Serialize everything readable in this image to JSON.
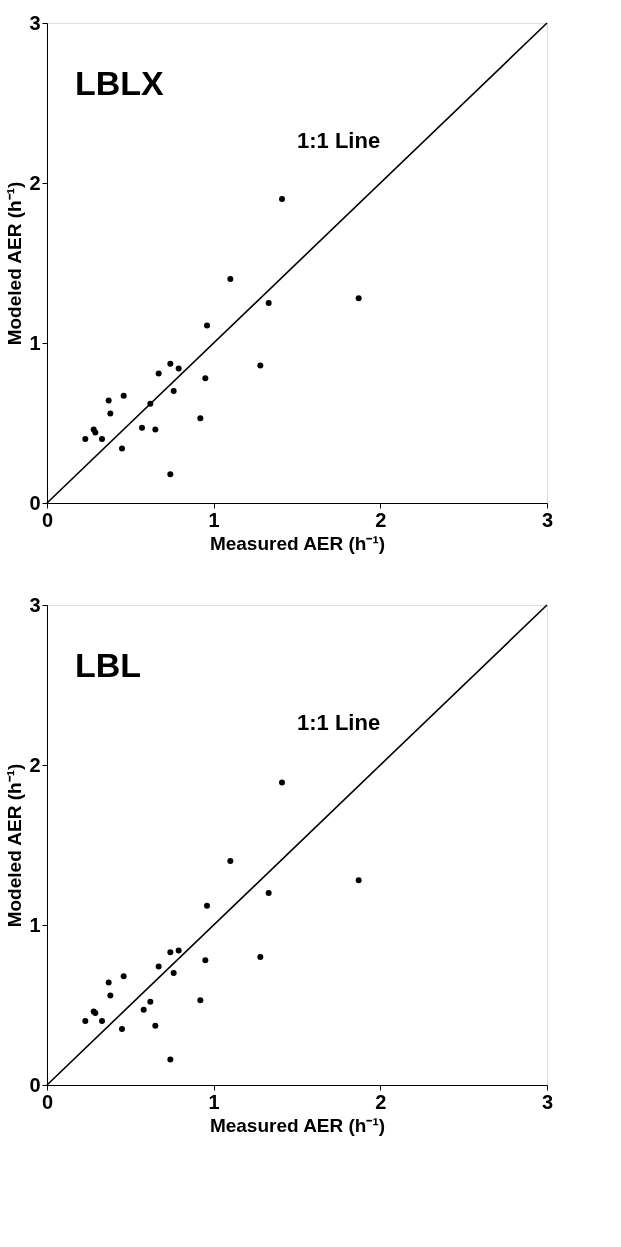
{
  "chart_data": [
    {
      "type": "scatter",
      "xlabel": "Measured AER (h⁻¹)",
      "ylabel": "Modeled AER (h⁻¹)",
      "xlim": [
        0,
        3
      ],
      "ylim": [
        0,
        3
      ],
      "xticks": [
        0,
        1,
        2,
        3
      ],
      "yticks": [
        0,
        1,
        2,
        3
      ],
      "grid": false,
      "annotations": [
        "LBLX",
        "1:1 Line"
      ],
      "series": [
        {
          "marker": "circle",
          "color": "#000000",
          "x": [
            0.23,
            0.28,
            0.29,
            0.33,
            0.37,
            0.38,
            0.45,
            0.46,
            0.57,
            0.62,
            0.65,
            0.67,
            0.74,
            0.74,
            0.76,
            0.79,
            0.92,
            0.95,
            0.96,
            1.1,
            1.28,
            1.33,
            1.41,
            1.87
          ],
          "values": [
            0.4,
            0.46,
            0.44,
            0.4,
            0.64,
            0.56,
            0.34,
            0.67,
            0.47,
            0.62,
            0.46,
            0.81,
            0.87,
            0.18,
            0.7,
            0.84,
            0.53,
            0.78,
            1.11,
            1.4,
            0.86,
            1.25,
            1.9,
            1.28
          ]
        },
        {
          "type": "line",
          "marker": "none",
          "color": "#000000",
          "line_style": "solid",
          "x": [
            0,
            3
          ],
          "values": [
            0,
            3
          ]
        }
      ]
    },
    {
      "type": "scatter",
      "xlabel": "Measured AER (h⁻¹)",
      "ylabel": "Modeled AER (h⁻¹)",
      "xlim": [
        0,
        3
      ],
      "ylim": [
        0,
        3
      ],
      "xticks": [
        0,
        1,
        2,
        3
      ],
      "yticks": [
        0,
        1,
        2,
        3
      ],
      "grid": false,
      "annotations": [
        "LBL",
        "1:1 Line"
      ],
      "series": [
        {
          "marker": "circle",
          "color": "#000000",
          "x": [
            0.23,
            0.28,
            0.29,
            0.33,
            0.37,
            0.38,
            0.45,
            0.46,
            0.58,
            0.62,
            0.65,
            0.67,
            0.74,
            0.74,
            0.76,
            0.79,
            0.92,
            0.95,
            0.96,
            1.1,
            1.28,
            1.33,
            1.41,
            1.87
          ],
          "values": [
            0.4,
            0.46,
            0.45,
            0.4,
            0.64,
            0.56,
            0.35,
            0.68,
            0.47,
            0.52,
            0.37,
            0.74,
            0.83,
            0.16,
            0.7,
            0.84,
            0.53,
            0.78,
            1.12,
            1.4,
            0.8,
            1.2,
            1.89,
            1.28
          ]
        },
        {
          "type": "line",
          "marker": "none",
          "color": "#000000",
          "line_style": "solid",
          "x": [
            0,
            3
          ],
          "values": [
            0,
            3
          ]
        }
      ]
    }
  ]
}
